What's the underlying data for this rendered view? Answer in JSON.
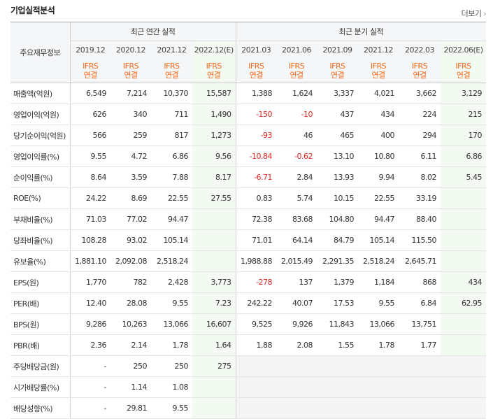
{
  "title": "기업실적분석",
  "more_label": "더보기",
  "header": {
    "row_label": "주요재무정보",
    "annual_group": "최근 연간 실적",
    "quarter_group": "최근 분기 실적",
    "annual_periods": [
      "2019.12",
      "2020.12",
      "2021.12",
      "2022.12(E)"
    ],
    "quarter_periods": [
      "2021.03",
      "2021.06",
      "2021.09",
      "2021.12",
      "2022.03",
      "2022.06(E)"
    ],
    "ifrs_line1": "IFRS",
    "ifrs_line2": "연결"
  },
  "rows": [
    {
      "label": "매출액(억원)",
      "values": [
        "6,549",
        "7,214",
        "10,370",
        "15,587",
        "1,388",
        "1,624",
        "3,337",
        "4,021",
        "3,662",
        "3,129"
      ]
    },
    {
      "label": "영업이익(억원)",
      "values": [
        "626",
        "340",
        "711",
        "1,490",
        "-150",
        "-10",
        "437",
        "434",
        "224",
        "215"
      ]
    },
    {
      "label": "당기순이익(억원)",
      "values": [
        "566",
        "259",
        "817",
        "1,273",
        "-93",
        "46",
        "465",
        "400",
        "294",
        "170"
      ]
    },
    {
      "label": "영업이익률(%)",
      "values": [
        "9.55",
        "4.72",
        "6.86",
        "9.56",
        "-10.84",
        "-0.62",
        "13.10",
        "10.80",
        "6.11",
        "6.86"
      ]
    },
    {
      "label": "순이익률(%)",
      "values": [
        "8.64",
        "3.59",
        "7.88",
        "8.17",
        "-6.71",
        "2.84",
        "13.93",
        "9.94",
        "8.02",
        "5.45"
      ]
    },
    {
      "label": "ROE(%)",
      "values": [
        "24.22",
        "8.69",
        "22.55",
        "27.55",
        "0.83",
        "5.74",
        "10.15",
        "22.55",
        "33.19",
        ""
      ]
    },
    {
      "label": "부채비율(%)",
      "values": [
        "71.03",
        "77.02",
        "94.47",
        "",
        "72.38",
        "83.68",
        "104.80",
        "94.47",
        "88.40",
        ""
      ]
    },
    {
      "label": "당좌비율(%)",
      "values": [
        "108.28",
        "93.02",
        "105.14",
        "",
        "71.01",
        "64.14",
        "84.79",
        "105.14",
        "115.50",
        ""
      ]
    },
    {
      "label": "유보율(%)",
      "values": [
        "1,881.10",
        "2,092.08",
        "2,518.24",
        "",
        "1,988.88",
        "2,015.49",
        "2,291.35",
        "2,518.24",
        "2,645.71",
        ""
      ]
    },
    {
      "label": "EPS(원)",
      "values": [
        "1,770",
        "782",
        "2,428",
        "3,773",
        "-278",
        "137",
        "1,379",
        "1,184",
        "868",
        "434"
      ]
    },
    {
      "label": "PER(배)",
      "values": [
        "12.40",
        "28.08",
        "9.55",
        "7.23",
        "242.22",
        "40.07",
        "17.53",
        "9.55",
        "6.84",
        "62.95"
      ]
    },
    {
      "label": "BPS(원)",
      "values": [
        "9,286",
        "10,263",
        "13,066",
        "16,607",
        "9,525",
        "9,926",
        "11,843",
        "13,066",
        "13,751",
        ""
      ]
    },
    {
      "label": "PBR(배)",
      "values": [
        "2.36",
        "2.14",
        "1.78",
        "1.64",
        "1.88",
        "2.08",
        "1.55",
        "1.78",
        "1.77",
        ""
      ]
    },
    {
      "label": "주당배당금(원)",
      "values": [
        "-",
        "250",
        "250",
        "275",
        "",
        "",
        "",
        "",
        "",
        ""
      ]
    },
    {
      "label": "시가배당률(%)",
      "values": [
        "-",
        "1.14",
        "1.08",
        "",
        "",
        "",
        "",
        "",
        "",
        ""
      ]
    },
    {
      "label": "배당성향(%)",
      "values": [
        "-",
        "29.81",
        "9.55",
        "",
        "",
        "",
        "",
        "",
        "",
        ""
      ]
    }
  ],
  "group_starts": [
    3,
    6,
    9
  ],
  "quarter_empty_rows": [
    13,
    14,
    15
  ],
  "colors": {
    "negative": "#e0271d",
    "ifrs": "#f26c1b",
    "estimate_bg": "#f2faf2"
  }
}
